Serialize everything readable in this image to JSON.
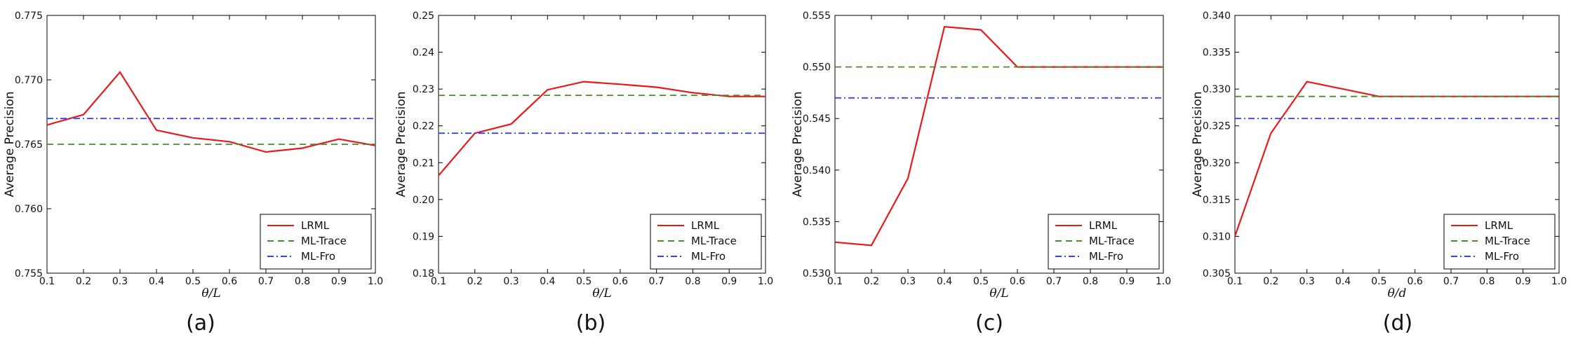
{
  "colors": {
    "LRML": "#e41a1c",
    "ML-Trace": "#4a8c2a",
    "ML-Fro": "#3344ee"
  },
  "chart_data": [
    {
      "type": "line",
      "caption": "(a)",
      "xlabel": "θ/L",
      "ylabel": "Average Precision",
      "xlim": [
        0.1,
        1.0
      ],
      "ylim": [
        0.755,
        0.775
      ],
      "xticks": [
        "0.1",
        "0.2",
        "0.3",
        "0.4",
        "0.5",
        "0.6",
        "0.7",
        "0.8",
        "0.9",
        "1.0"
      ],
      "yticks": [
        "0.755",
        "0.760",
        "0.765",
        "0.770",
        "0.775"
      ],
      "legend": "lower-right",
      "x": [
        0.1,
        0.2,
        0.3,
        0.4,
        0.5,
        0.6,
        0.7,
        0.8,
        0.9,
        1.0
      ],
      "series": [
        {
          "name": "LRML",
          "style": "solid",
          "values": [
            0.7665,
            0.7673,
            0.7706,
            0.7661,
            0.7655,
            0.7652,
            0.7644,
            0.7647,
            0.7654,
            0.7649
          ]
        },
        {
          "name": "ML-Trace",
          "style": "dashed",
          "values": [
            0.765,
            0.765,
            0.765,
            0.765,
            0.765,
            0.765,
            0.765,
            0.765,
            0.765,
            0.765
          ]
        },
        {
          "name": "ML-Fro",
          "style": "dashdot",
          "values": [
            0.767,
            0.767,
            0.767,
            0.767,
            0.767,
            0.767,
            0.767,
            0.767,
            0.767,
            0.767
          ]
        }
      ]
    },
    {
      "type": "line",
      "caption": "(b)",
      "xlabel": "θ/L",
      "ylabel": "Average Precision",
      "xlim": [
        0.1,
        1.0
      ],
      "ylim": [
        0.18,
        0.25
      ],
      "xticks": [
        "0.1",
        "0.2",
        "0.3",
        "0.4",
        "0.5",
        "0.6",
        "0.7",
        "0.8",
        "0.9",
        "1.0"
      ],
      "yticks": [
        "0.18",
        "0.19",
        "0.20",
        "0.21",
        "0.22",
        "0.23",
        "0.24",
        "0.25"
      ],
      "legend": "lower-right",
      "x": [
        0.1,
        0.2,
        0.3,
        0.4,
        0.5,
        0.6,
        0.7,
        0.8,
        0.9,
        1.0
      ],
      "series": [
        {
          "name": "LRML",
          "style": "solid",
          "values": [
            0.2065,
            0.218,
            0.2205,
            0.2298,
            0.232,
            0.2313,
            0.2305,
            0.229,
            0.228,
            0.228
          ]
        },
        {
          "name": "ML-Trace",
          "style": "dashed",
          "values": [
            0.2283,
            0.2283,
            0.2283,
            0.2283,
            0.2283,
            0.2283,
            0.2283,
            0.2283,
            0.2283,
            0.2283
          ]
        },
        {
          "name": "ML-Fro",
          "style": "dashdot",
          "values": [
            0.218,
            0.218,
            0.218,
            0.218,
            0.218,
            0.218,
            0.218,
            0.218,
            0.218,
            0.218
          ]
        }
      ]
    },
    {
      "type": "line",
      "caption": "(c)",
      "xlabel": "θ/L",
      "ylabel": "Average Precision",
      "xlim": [
        0.1,
        1.0
      ],
      "ylim": [
        0.53,
        0.555
      ],
      "xticks": [
        "0.1",
        "0.2",
        "0.3",
        "0.4",
        "0.5",
        "0.6",
        "0.7",
        "0.8",
        "0.9",
        "1.0"
      ],
      "yticks": [
        "0.530",
        "0.535",
        "0.540",
        "0.545",
        "0.550",
        "0.555"
      ],
      "legend": "lower-right",
      "x": [
        0.1,
        0.2,
        0.3,
        0.4,
        0.5,
        0.6,
        0.7,
        0.8,
        0.9,
        1.0
      ],
      "series": [
        {
          "name": "LRML",
          "style": "solid",
          "values": [
            0.533,
            0.5327,
            0.5392,
            0.5539,
            0.5536,
            0.55,
            0.55,
            0.55,
            0.55,
            0.55
          ]
        },
        {
          "name": "ML-Trace",
          "style": "dashed",
          "values": [
            0.55,
            0.55,
            0.55,
            0.55,
            0.55,
            0.55,
            0.55,
            0.55,
            0.55,
            0.55
          ]
        },
        {
          "name": "ML-Fro",
          "style": "dashdot",
          "values": [
            0.547,
            0.547,
            0.547,
            0.547,
            0.547,
            0.547,
            0.547,
            0.547,
            0.547,
            0.547
          ]
        }
      ]
    },
    {
      "type": "line",
      "caption": "(d)",
      "xlabel": "θ/d",
      "ylabel": "Average Precision",
      "xlim": [
        0.1,
        1.0
      ],
      "ylim": [
        0.305,
        0.34
      ],
      "xticks": [
        "0.1",
        "0.2",
        "0.3",
        "0.4",
        "0.5",
        "0.6",
        "0.7",
        "0.8",
        "0.9",
        "1.0"
      ],
      "yticks": [
        "0.305",
        "0.310",
        "0.315",
        "0.320",
        "0.325",
        "0.330",
        "0.335",
        "0.340"
      ],
      "legend": "lower-right",
      "x": [
        0.1,
        0.2,
        0.3,
        0.4,
        0.5,
        0.6,
        0.7,
        0.8,
        0.9,
        1.0
      ],
      "series": [
        {
          "name": "LRML",
          "style": "solid",
          "values": [
            0.31,
            0.324,
            0.331,
            0.33,
            0.329,
            0.329,
            0.329,
            0.329,
            0.329,
            0.329
          ]
        },
        {
          "name": "ML-Trace",
          "style": "dashed",
          "values": [
            0.329,
            0.329,
            0.329,
            0.329,
            0.329,
            0.329,
            0.329,
            0.329,
            0.329,
            0.329
          ]
        },
        {
          "name": "ML-Fro",
          "style": "dashdot",
          "values": [
            0.326,
            0.326,
            0.326,
            0.326,
            0.326,
            0.326,
            0.326,
            0.326,
            0.326,
            0.326
          ]
        }
      ]
    }
  ]
}
